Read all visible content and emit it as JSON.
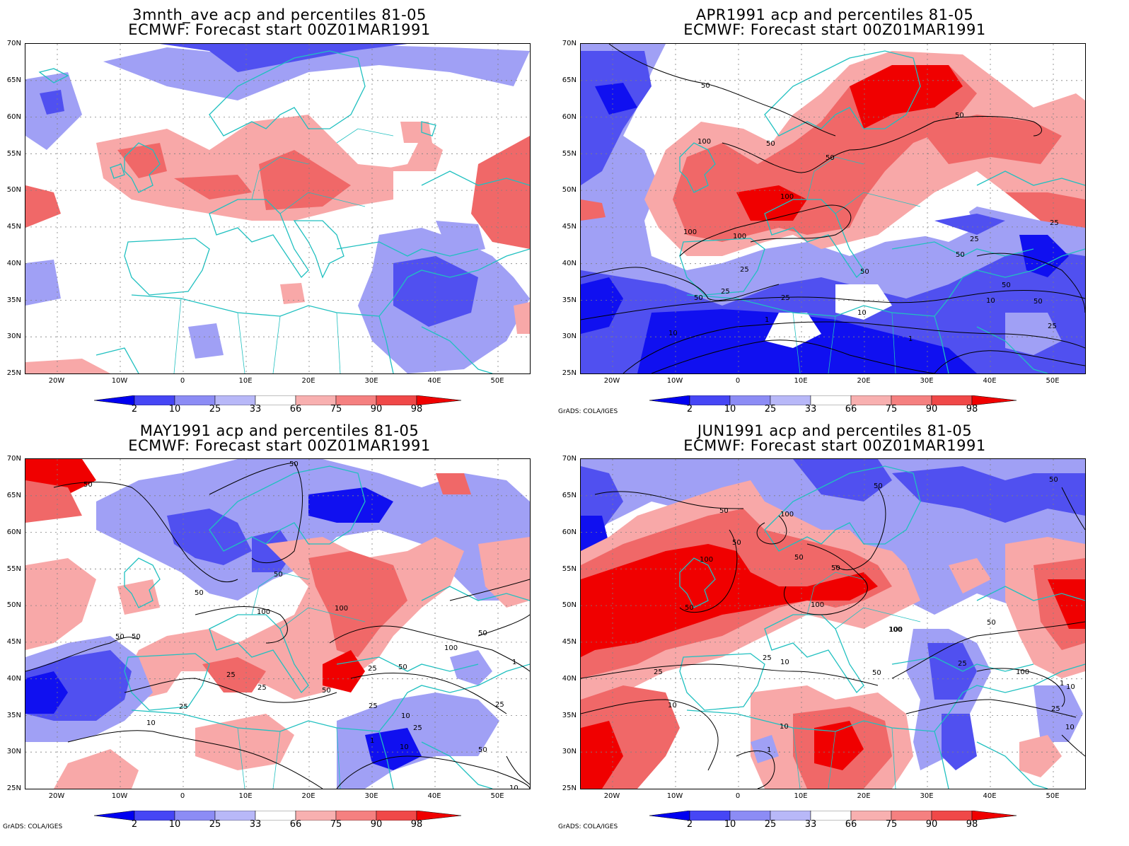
{
  "panels": [
    {
      "id": "p1",
      "title_line1": "3mnth_ave acp and percentiles 81-05",
      "title_line2": "ECMWF: Forecast start 00Z01MAR1991",
      "credit": ""
    },
    {
      "id": "p2",
      "title_line1": "APR1991 acp and percentiles 81-05",
      "title_line2": "ECMWF: Forecast start 00Z01MAR1991",
      "credit": "GrADS: COLA/IGES"
    },
    {
      "id": "p3",
      "title_line1": "MAY1991 acp and percentiles 81-05",
      "title_line2": "ECMWF: Forecast start 00Z01MAR1991",
      "credit": "GrADS: COLA/IGES"
    },
    {
      "id": "p4",
      "title_line1": "JUN1991 acp and percentiles 81-05",
      "title_line2": "ECMWF: Forecast start 00Z01MAR1991",
      "credit": "GrADS: COLA/IGES"
    }
  ],
  "lat_labels": [
    "70N",
    "65N",
    "60N",
    "55N",
    "50N",
    "45N",
    "40N",
    "35N",
    "30N",
    "25N"
  ],
  "lon_labels": [
    "20W",
    "10W",
    "0",
    "10E",
    "20E",
    "30E",
    "40E",
    "50E"
  ],
  "colorbar": {
    "labels": [
      "2",
      "10",
      "25",
      "33",
      "66",
      "75",
      "90",
      "98"
    ],
    "colors": [
      "#0000f0",
      "#4646f5",
      "#8c8cf5",
      "#b8b8f8",
      "#ffffff",
      "#f8b0b0",
      "#f58080",
      "#f04848",
      "#f00000"
    ]
  },
  "colors": {
    "coast": "#20c0c0",
    "grid": "#808080",
    "contour": "#000000",
    "dry_strong": "#1010f0",
    "dry_mid": "#5050f0",
    "dry_light": "#a0a0f5",
    "wet_light": "#f8a8a8",
    "wet_mid": "#f06868",
    "wet_strong": "#f00000"
  },
  "contour_labels": {
    "p2": [
      "50",
      "100",
      "50",
      "50",
      "100",
      "100",
      "100",
      "50",
      "25",
      "50",
      "25",
      "25",
      "50",
      "25",
      "10",
      "1",
      "10",
      "1",
      "50",
      "10",
      "50",
      "25",
      "50",
      "25"
    ],
    "p3": [
      "50",
      "50",
      "50",
      "50",
      "100",
      "50",
      "50",
      "25",
      "25",
      "50",
      "10",
      "1",
      "10",
      "25",
      "25",
      "100",
      "50",
      "100",
      "25",
      "50",
      "25",
      "10",
      "25",
      "10",
      "1",
      "50"
    ],
    "p4": [
      "50",
      "50",
      "100",
      "100",
      "50",
      "50",
      "50",
      "100",
      "50",
      "100",
      "25",
      "50",
      "25",
      "10",
      "10",
      "1",
      "10",
      "25",
      "100",
      "50",
      "25",
      "10",
      "1",
      "10",
      "100",
      "50"
    ]
  }
}
